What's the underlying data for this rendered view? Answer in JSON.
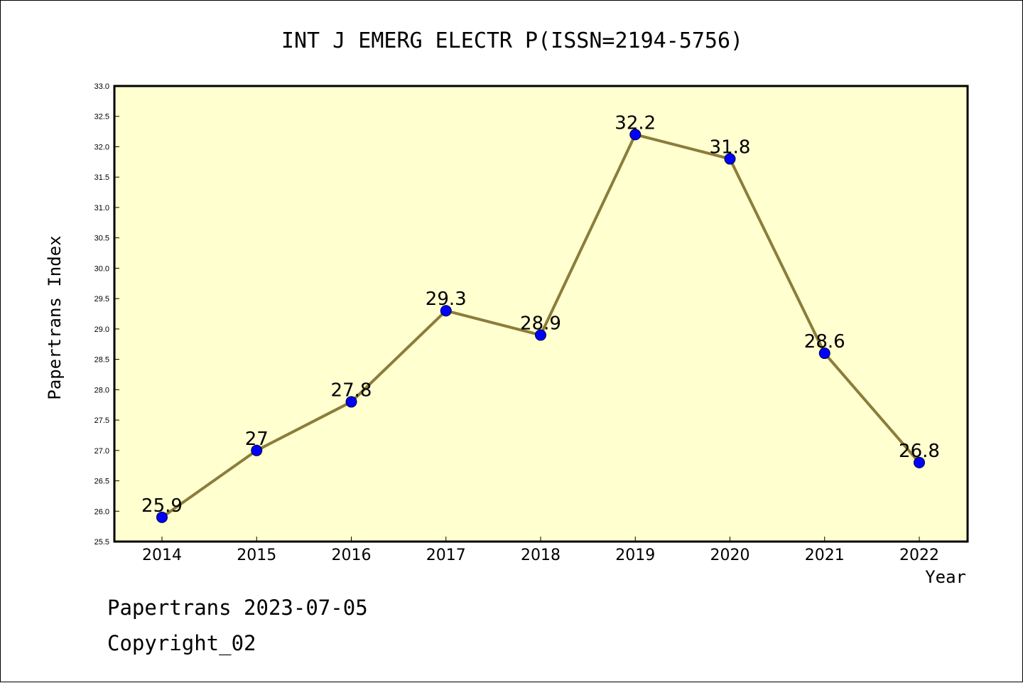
{
  "chart_data": {
    "type": "line",
    "title": "INT J EMERG ELECTR P(ISSN=2194-5756)",
    "xlabel": "Year",
    "ylabel": "Papertrans Index",
    "categories": [
      "2014",
      "2015",
      "2016",
      "2017",
      "2018",
      "2019",
      "2020",
      "2021",
      "2022"
    ],
    "values": [
      25.9,
      27,
      27.8,
      29.3,
      28.9,
      32.2,
      31.8,
      28.6,
      26.8
    ],
    "data_labels": [
      "25.9",
      "27",
      "27.8",
      "29.3",
      "28.9",
      "32.2",
      "31.8",
      "28.6",
      "26.8"
    ],
    "ylim": [
      25.5,
      33.0
    ],
    "yticks": [
      "25.5",
      "26.0",
      "26.5",
      "27.0",
      "27.5",
      "28.0",
      "28.5",
      "29.0",
      "29.5",
      "30.0",
      "30.5",
      "31.0",
      "31.5",
      "32.0",
      "32.5",
      "33.0"
    ],
    "grid": false,
    "legend": "none",
    "colors": {
      "plot_background": "#ffffd0",
      "line": "#8b7d3a",
      "marker": "#0000ff"
    }
  },
  "footer": {
    "line1": "Papertrans 2023-07-05",
    "line2": "Copyright_02"
  }
}
